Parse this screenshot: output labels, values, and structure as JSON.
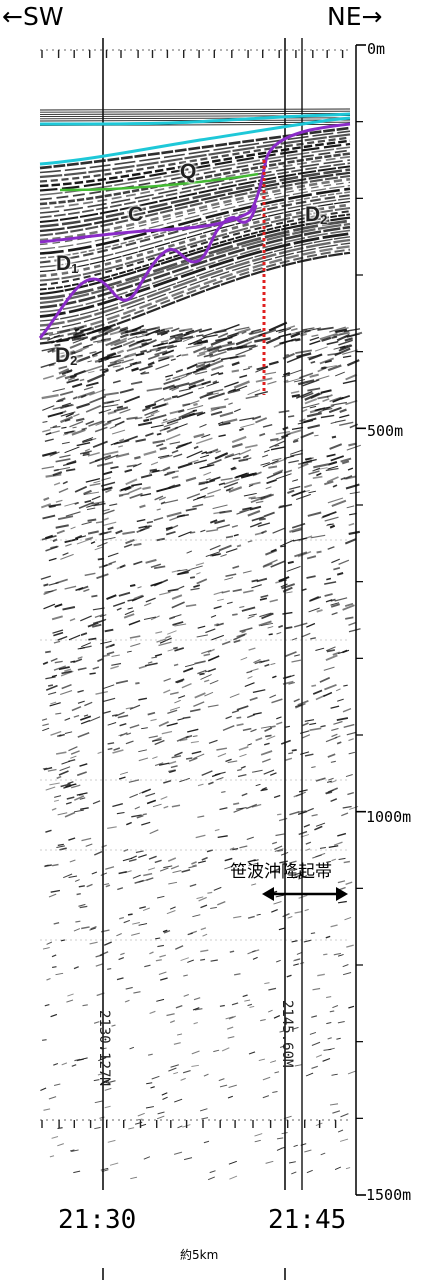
{
  "direction": {
    "left": "←SW",
    "right": "NE→"
  },
  "depth_scale": {
    "labels": [
      "0m",
      "500m",
      "1000m",
      "1500m"
    ],
    "values": [
      0,
      500,
      1000,
      1500
    ],
    "minor_tick_interval_m": 100
  },
  "time_marks": [
    "21:30",
    "21:45"
  ],
  "record_annotations": [
    "2130.127M",
    "2145.60M"
  ],
  "units": [
    {
      "id": "Q",
      "text": "Q"
    },
    {
      "id": "C",
      "text": "C"
    },
    {
      "id": "D1",
      "base": "D",
      "sub": "1"
    },
    {
      "id": "D2_left",
      "base": "D",
      "sub": "2"
    },
    {
      "id": "D2_right",
      "base": "D",
      "sub": "2"
    }
  ],
  "zone": {
    "name": "笹波沖隆起帯"
  },
  "distance": {
    "label": "約5km"
  },
  "colors": {
    "seafloor": "#1ec8d8",
    "q_base": "#44bb33",
    "d_boundary": "#8a2bc8",
    "fault": "#e02020",
    "reflector": "#111111"
  },
  "icons": {
    "zone_extent": "double-arrow-icon",
    "fault": "dashed-fault-line"
  }
}
